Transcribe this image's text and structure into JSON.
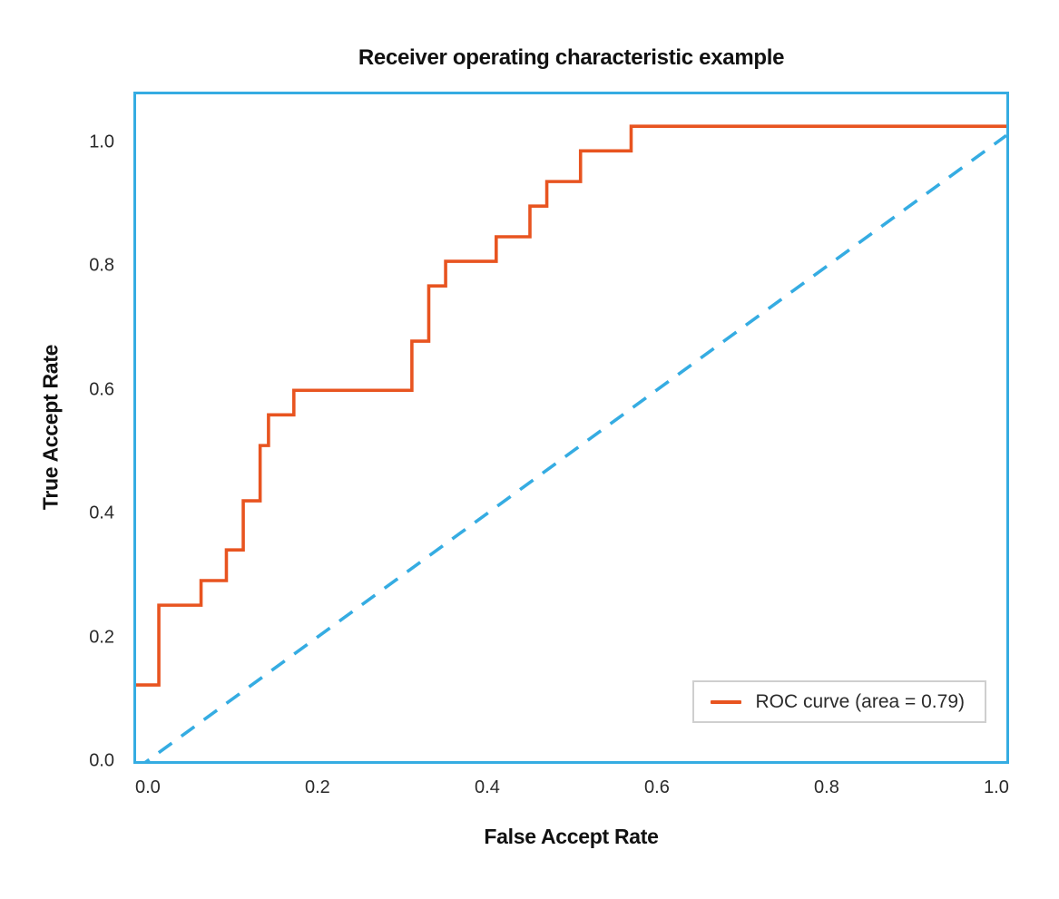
{
  "chart_data": {
    "type": "line",
    "title": "Receiver operating characteristic example",
    "xlabel": "False Accept Rate",
    "ylabel": "True Accept Rate",
    "x_ticks": [
      "0.0",
      "0.2",
      "0.4",
      "0.6",
      "0.8",
      "1.0"
    ],
    "y_ticks": [
      "0.0",
      "0.2",
      "0.4",
      "0.6",
      "0.8",
      "1.0"
    ],
    "x_tick_values": [
      0,
      0.2,
      0.4,
      0.6,
      0.8,
      1.0
    ],
    "y_tick_values": [
      0,
      0.2,
      0.4,
      0.6,
      0.8,
      1.0
    ],
    "x_range": [
      -0.017,
      1.015
    ],
    "y_range": [
      -0.004,
      1.082
    ],
    "grid": false,
    "frame_color": "#35ACE2",
    "legend": {
      "position": "lower right",
      "entries": [
        "ROC curve (area = 0.79)"
      ]
    },
    "auc": 0.79,
    "series": [
      {
        "key": "roc-curve-line",
        "name": "ROC curve (area = 0.79)",
        "color": "#E85420",
        "style": "solid",
        "width": 3.6,
        "points": [
          [
            -0.02,
            0.12
          ],
          [
            0.01,
            0.12
          ],
          [
            0.01,
            0.25
          ],
          [
            0.06,
            0.25
          ],
          [
            0.06,
            0.29
          ],
          [
            0.09,
            0.29
          ],
          [
            0.09,
            0.34
          ],
          [
            0.11,
            0.34
          ],
          [
            0.11,
            0.42
          ],
          [
            0.13,
            0.42
          ],
          [
            0.13,
            0.51
          ],
          [
            0.14,
            0.51
          ],
          [
            0.14,
            0.56
          ],
          [
            0.17,
            0.56
          ],
          [
            0.17,
            0.6
          ],
          [
            0.31,
            0.6
          ],
          [
            0.31,
            0.68
          ],
          [
            0.33,
            0.68
          ],
          [
            0.33,
            0.77
          ],
          [
            0.35,
            0.77
          ],
          [
            0.35,
            0.81
          ],
          [
            0.41,
            0.81
          ],
          [
            0.41,
            0.85
          ],
          [
            0.45,
            0.85
          ],
          [
            0.45,
            0.9
          ],
          [
            0.47,
            0.9
          ],
          [
            0.47,
            0.94
          ],
          [
            0.51,
            0.94
          ],
          [
            0.51,
            0.99
          ],
          [
            0.57,
            0.99
          ],
          [
            0.57,
            1.03
          ],
          [
            1.015,
            1.03
          ]
        ]
      },
      {
        "key": "chance-diagonal-line",
        "name": "chance diagonal",
        "color": "#35ACE2",
        "style": "dashed",
        "dash": "18 13",
        "width": 3.6,
        "points": [
          [
            -0.017,
            -0.017
          ],
          [
            1.015,
            1.015
          ]
        ]
      }
    ]
  }
}
